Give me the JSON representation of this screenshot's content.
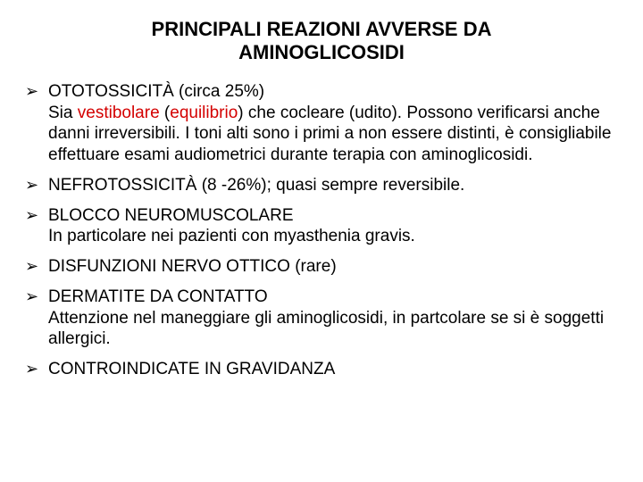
{
  "title": "PRINCIPALI REAZIONI AVVERSE DA AMINOGLICOSIDI",
  "colors": {
    "text": "#000000",
    "accent": "#d40000",
    "background": "#ffffff"
  },
  "typography": {
    "title_fontsize": 22,
    "body_fontsize": 19,
    "font_family": "Arial"
  },
  "items": [
    {
      "head": "OTOTOSSICITÀ (circa 25%)",
      "body_pre": "Sia ",
      "body_red1": "vestibolare",
      "body_mid1": " (",
      "body_red2": "equilibrio",
      "body_mid2": ") che cocleare (udito). Possono verificarsi anche danni irreversibili. I toni alti sono i primi a non essere distinti, è consigliabile effettuare esami audiometrici durante terapia con aminoglicosidi."
    },
    {
      "head": "NEFROTOSSICITÀ (8 -26%); quasi sempre reversibile."
    },
    {
      "head": "BLOCCO NEUROMUSCOLARE",
      "body": "In particolare nei pazienti con myasthenia gravis."
    },
    {
      "head": "DISFUNZIONI NERVO OTTICO (rare)"
    },
    {
      "head": "DERMATITE DA CONTATTO",
      "body": "Attenzione nel maneggiare gli aminoglicosidi, in partcolare se si è soggetti allergici."
    },
    {
      "head": "CONTROINDICATE IN GRAVIDANZA"
    }
  ]
}
